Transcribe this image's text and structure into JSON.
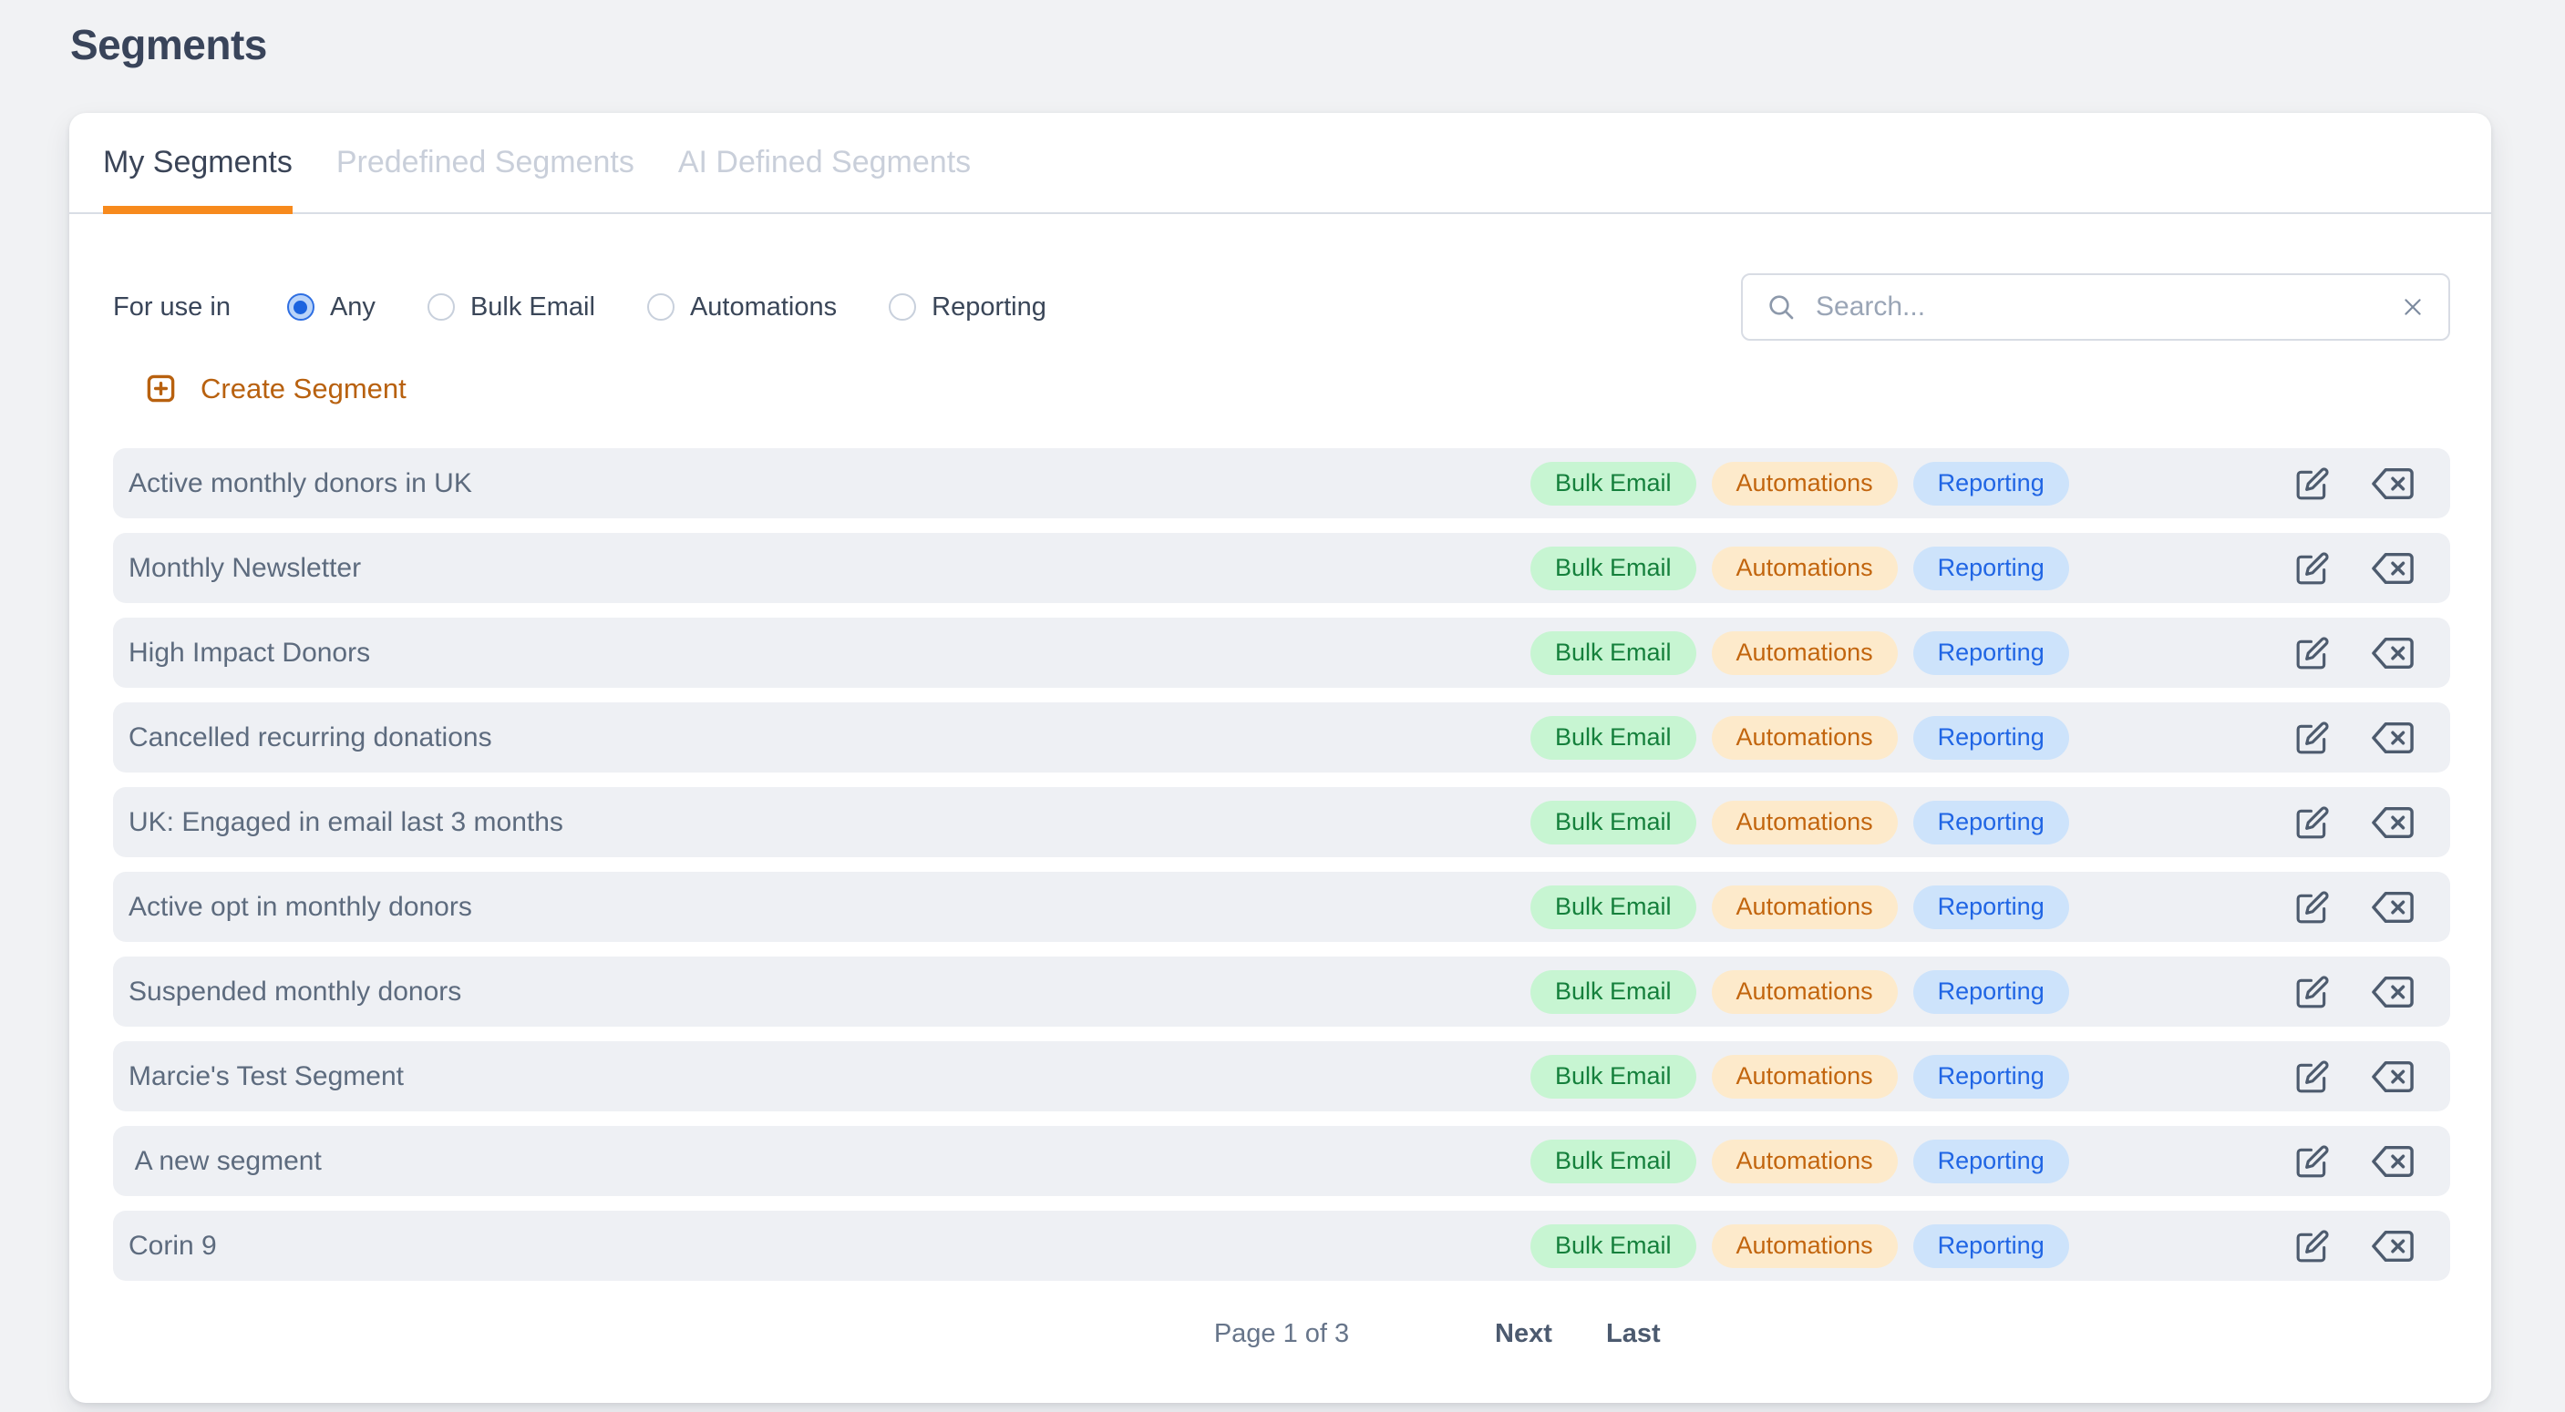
{
  "page": {
    "title": "Segments"
  },
  "tabs": [
    {
      "label": "My Segments",
      "active": true
    },
    {
      "label": "Predefined Segments",
      "active": false
    },
    {
      "label": "AI Defined Segments",
      "active": false
    }
  ],
  "filter": {
    "label": "For use in",
    "options": [
      {
        "label": "Any",
        "selected": true
      },
      {
        "label": "Bulk Email",
        "selected": false
      },
      {
        "label": "Automations",
        "selected": false
      },
      {
        "label": "Reporting",
        "selected": false
      }
    ]
  },
  "search": {
    "placeholder": "Search...",
    "value": ""
  },
  "create_button": {
    "label": "Create Segment"
  },
  "segments": {
    "badges": [
      {
        "label": "Bulk Email",
        "type": "bulk-email"
      },
      {
        "label": "Automations",
        "type": "automations"
      },
      {
        "label": "Reporting",
        "type": "reporting"
      }
    ],
    "rows": [
      "Active monthly donors in UK",
      "Monthly Newsletter",
      "High Impact Donors",
      "Cancelled recurring donations",
      "UK: Engaged in email last 3 months",
      "Active opt in monthly donors",
      "Suspended monthly donors",
      "Marcie's Test Segment",
      " A new segment",
      "Corin 9"
    ]
  },
  "pagination": {
    "status": "Page 1 of 3",
    "next_label": "Next",
    "last_label": "Last"
  },
  "colors": {
    "brand_orange": "#f78a1d",
    "create_orange": "#b8610f",
    "radio_selected_blue": "#1b63df",
    "badge_green_bg": "#c7f5d2",
    "badge_green_text": "#15803c",
    "badge_orange_bg": "#fdeacb",
    "badge_orange_text": "#c2650e",
    "badge_blue_bg": "#cde3fb",
    "badge_blue_text": "#2065e4",
    "row_bg": "#eef0f4",
    "page_bg": "#f1f2f4"
  }
}
